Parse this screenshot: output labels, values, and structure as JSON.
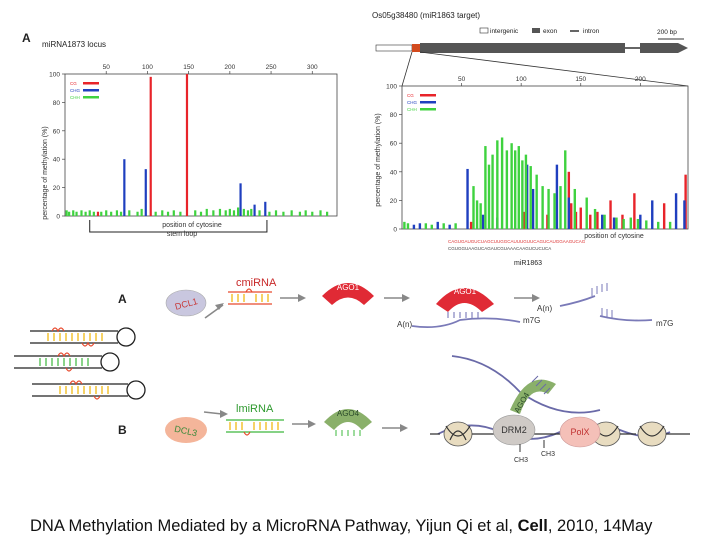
{
  "top_left_panel": {
    "letter": "A",
    "title": "miRNA1873 locus"
  },
  "top_right_panel": {
    "gene_title": "Os05g38480 (miR1863 target)",
    "legend_items": [
      "intergenic",
      "exon",
      "intron"
    ],
    "scale_bar": "200 bp",
    "sequence_label": "miR1863",
    "sequence_line1": "CAGUGAUGUCUAGCUUGGCAUUUGUUCAGUCAUGGAAGUCAG",
    "sequence_line2": "CGUGGUAAGUCAGAUCGUAAACAAGUCUCUCA"
  },
  "chart_data": [
    {
      "type": "bar",
      "title": "",
      "xlabel": "position of cytosine",
      "ylabel": "percentage of methylation (%)",
      "xlim": [
        0,
        330
      ],
      "ylim": [
        0,
        100
      ],
      "xticks": [
        50,
        100,
        150,
        200,
        250,
        300
      ],
      "yticks": [
        0,
        20,
        40,
        60,
        80,
        100
      ],
      "legend": [
        "CG",
        "CHG",
        "CHH"
      ],
      "colors": {
        "CG": "#e8242a",
        "CHG": "#1f3fbf",
        "CHH": "#3fd23f"
      },
      "annotation": "stem loop",
      "annotation_range": [
        30,
        245
      ],
      "series": [
        {
          "name": "CG",
          "x": [
            40,
            104,
            148
          ],
          "values": [
            3,
            98,
            100
          ]
        },
        {
          "name": "CHG",
          "x": [
            72,
            98,
            213,
            230,
            243
          ],
          "values": [
            40,
            33,
            23,
            8,
            10
          ]
        },
        {
          "name": "CHH",
          "x": [
            2,
            5,
            10,
            14,
            20,
            25,
            30,
            35,
            44,
            50,
            56,
            63,
            68,
            78,
            88,
            93,
            110,
            118,
            125,
            132,
            140,
            158,
            165,
            172,
            180,
            188,
            195,
            200,
            205,
            210,
            217,
            222,
            226,
            236,
            248,
            256,
            265,
            275,
            285,
            292,
            300,
            310,
            318
          ],
          "values": [
            4,
            3,
            4,
            3,
            4,
            3,
            4,
            3,
            3,
            4,
            3,
            4,
            3,
            4,
            3,
            5,
            3,
            4,
            3,
            4,
            3,
            4,
            3,
            5,
            4,
            5,
            4,
            5,
            4,
            6,
            5,
            4,
            5,
            4,
            3,
            4,
            3,
            4,
            3,
            4,
            3,
            4,
            3
          ]
        }
      ]
    },
    {
      "type": "bar",
      "title": "",
      "xlabel": "position of cytosine",
      "ylabel": "percentage of methylation (%)",
      "xlim": [
        0,
        240
      ],
      "ylim": [
        0,
        100
      ],
      "xticks": [
        50,
        100,
        150,
        200
      ],
      "yticks": [
        0,
        20,
        40,
        60,
        80,
        100
      ],
      "legend": [
        "CG",
        "CHG",
        "CHH"
      ],
      "colors": {
        "CG": "#e8242a",
        "CHG": "#1f3fbf",
        "CHH": "#3fd23f"
      },
      "series": [
        {
          "name": "CG",
          "x": [
            58,
            103,
            122,
            140,
            142,
            146,
            150,
            158,
            164,
            175,
            178,
            185,
            195,
            220,
            238
          ],
          "values": [
            5,
            12,
            10,
            40,
            18,
            12,
            15,
            10,
            12,
            20,
            8,
            10,
            25,
            18,
            38
          ]
        },
        {
          "name": "CHG",
          "x": [
            10,
            15,
            30,
            40,
            55,
            68,
            80,
            105,
            110,
            130,
            140,
            168,
            178,
            200,
            210,
            230,
            237
          ],
          "values": [
            3,
            4,
            5,
            3,
            42,
            10,
            8,
            45,
            28,
            45,
            22,
            10,
            8,
            10,
            20,
            25,
            20
          ]
        },
        {
          "name": "CHH",
          "x": [
            2,
            5,
            20,
            25,
            35,
            45,
            60,
            63,
            66,
            70,
            73,
            76,
            80,
            84,
            88,
            92,
            95,
            98,
            101,
            104,
            108,
            113,
            118,
            123,
            128,
            133,
            137,
            145,
            155,
            162,
            170,
            180,
            186,
            192,
            198,
            205,
            215,
            225
          ],
          "values": [
            5,
            4,
            4,
            3,
            4,
            4,
            30,
            20,
            18,
            58,
            45,
            52,
            62,
            64,
            55,
            60,
            55,
            58,
            48,
            52,
            44,
            38,
            30,
            28,
            25,
            30,
            55,
            28,
            22,
            14,
            10,
            8,
            7,
            8,
            7,
            6,
            5,
            5
          ]
        }
      ]
    }
  ],
  "pathway": {
    "row_a": {
      "letter": "A",
      "dcl": "DCL1",
      "mirna": "cmiRNA",
      "ago": "AGO1",
      "ago_bound": "AGO1",
      "poly_a1": "A(n)",
      "poly_a2": "A(n)",
      "cap1": "m7G",
      "cap2": "m7G"
    },
    "row_b": {
      "letter": "B",
      "dcl": "DCL3",
      "mirna": "lmiRNA",
      "ago": "AGO4",
      "ago_bound": "AGO4",
      "drm": "DRM2",
      "polx": "PolX",
      "ch3_1": "CH3",
      "ch3_2": "CH3"
    }
  },
  "caption": {
    "prefix": "DNA Methylation Mediated by a MicroRNA Pathway, Yijun Qi et al, ",
    "journal": "Cell",
    "suffix": ", 2010, 14May"
  }
}
